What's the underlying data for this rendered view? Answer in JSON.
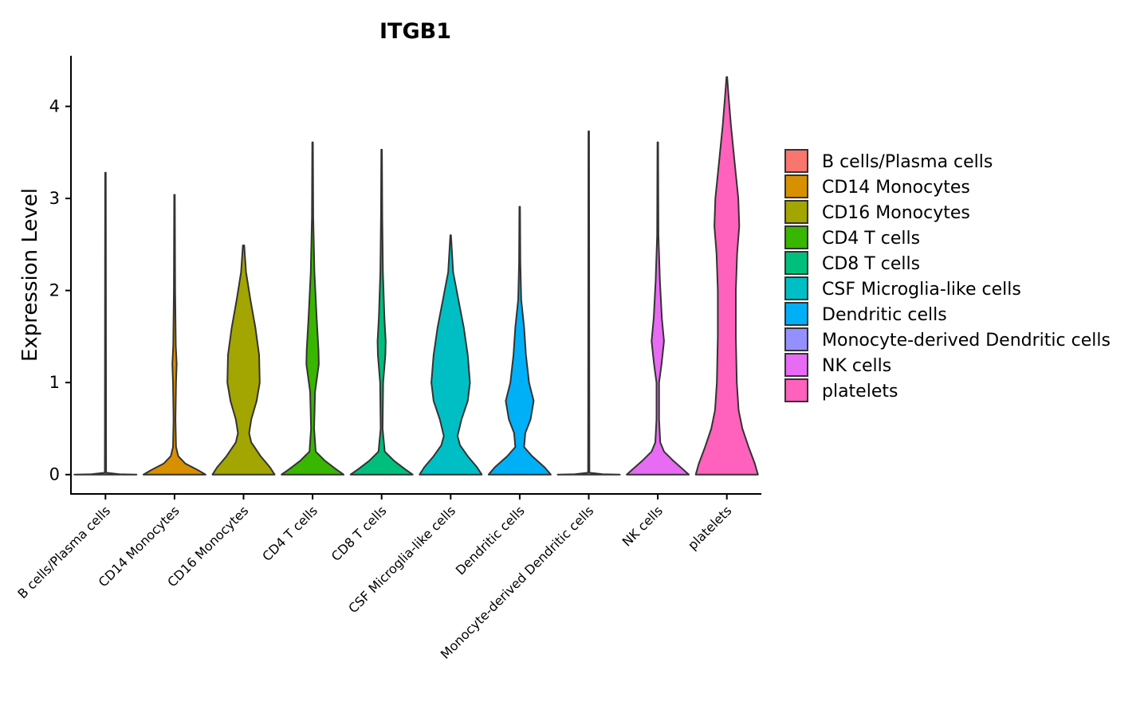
{
  "chart_data": {
    "type": "violin",
    "title": "ITGB1",
    "xlabel": "",
    "ylabel": "Expression Level",
    "ylim": [
      -0.21,
      4.55
    ],
    "yticks": [
      0,
      1,
      2,
      3,
      4
    ],
    "grid": false,
    "legend_position": "right",
    "categories": [
      "B cells/Plasma cells",
      "CD14 Monocytes",
      "CD16 Monocytes",
      "CD4 T cells",
      "CD8 T cells",
      "CSF Microglia-like cells",
      "Dendritic cells",
      "Monocyte-derived Dendritic cells",
      "NK cells",
      "platelets"
    ],
    "colors": [
      "#F8766D",
      "#D89000",
      "#A3A500",
      "#39B600",
      "#00BF7D",
      "#00BFC4",
      "#00B0F6",
      "#9590FF",
      "#E76BF3",
      "#FF62BC"
    ],
    "series": [
      {
        "name": "B cells/Plasma cells",
        "max": 3.28,
        "density": [
          [
            0,
            1.0
          ],
          [
            0.005,
            0.45
          ],
          [
            0.02,
            0.02
          ],
          [
            3.28,
            0.01
          ]
        ]
      },
      {
        "name": "CD14 Monocytes",
        "max": 3.04,
        "density": [
          [
            0,
            1.0
          ],
          [
            0.05,
            0.75
          ],
          [
            0.12,
            0.35
          ],
          [
            0.2,
            0.12
          ],
          [
            0.3,
            0.05
          ],
          [
            0.6,
            0.03
          ],
          [
            1.0,
            0.05
          ],
          [
            1.2,
            0.07
          ],
          [
            1.4,
            0.04
          ],
          [
            2.0,
            0.02
          ],
          [
            3.04,
            0.01
          ]
        ]
      },
      {
        "name": "CD16 Monocytes",
        "max": 2.49,
        "density": [
          [
            0,
            1.0
          ],
          [
            0.08,
            0.85
          ],
          [
            0.2,
            0.55
          ],
          [
            0.35,
            0.25
          ],
          [
            0.45,
            0.18
          ],
          [
            0.6,
            0.25
          ],
          [
            0.8,
            0.42
          ],
          [
            1.0,
            0.52
          ],
          [
            1.3,
            0.5
          ],
          [
            1.6,
            0.38
          ],
          [
            1.9,
            0.22
          ],
          [
            2.2,
            0.08
          ],
          [
            2.49,
            0.02
          ]
        ]
      },
      {
        "name": "CD4 T cells",
        "max": 3.61,
        "density": [
          [
            0,
            1.0
          ],
          [
            0.06,
            0.75
          ],
          [
            0.15,
            0.4
          ],
          [
            0.25,
            0.1
          ],
          [
            0.5,
            0.05
          ],
          [
            0.9,
            0.08
          ],
          [
            1.2,
            0.2
          ],
          [
            1.35,
            0.19
          ],
          [
            1.7,
            0.13
          ],
          [
            2.2,
            0.06
          ],
          [
            2.8,
            0.02
          ],
          [
            3.61,
            0.01
          ]
        ]
      },
      {
        "name": "CD8 T cells",
        "max": 3.53,
        "density": [
          [
            0,
            1.0
          ],
          [
            0.06,
            0.75
          ],
          [
            0.15,
            0.4
          ],
          [
            0.25,
            0.1
          ],
          [
            0.5,
            0.03
          ],
          [
            1.0,
            0.05
          ],
          [
            1.3,
            0.12
          ],
          [
            1.45,
            0.13
          ],
          [
            1.7,
            0.09
          ],
          [
            2.2,
            0.04
          ],
          [
            2.8,
            0.02
          ],
          [
            3.53,
            0.01
          ]
        ]
      },
      {
        "name": "CSF Microglia-like cells",
        "max": 2.6,
        "density": [
          [
            0,
            1.0
          ],
          [
            0.08,
            0.85
          ],
          [
            0.2,
            0.55
          ],
          [
            0.32,
            0.3
          ],
          [
            0.42,
            0.22
          ],
          [
            0.6,
            0.35
          ],
          [
            0.8,
            0.55
          ],
          [
            1.0,
            0.62
          ],
          [
            1.3,
            0.55
          ],
          [
            1.6,
            0.42
          ],
          [
            1.9,
            0.25
          ],
          [
            2.2,
            0.08
          ],
          [
            2.6,
            0.01
          ]
        ]
      },
      {
        "name": "Dendritic cells",
        "max": 2.91,
        "density": [
          [
            0,
            1.0
          ],
          [
            0.08,
            0.8
          ],
          [
            0.2,
            0.4
          ],
          [
            0.3,
            0.14
          ],
          [
            0.45,
            0.18
          ],
          [
            0.6,
            0.35
          ],
          [
            0.8,
            0.45
          ],
          [
            1.0,
            0.3
          ],
          [
            1.3,
            0.2
          ],
          [
            1.6,
            0.14
          ],
          [
            1.9,
            0.05
          ],
          [
            2.3,
            0.02
          ],
          [
            2.91,
            0.01
          ]
        ]
      },
      {
        "name": "Monocyte-derived Dendritic cells",
        "max": 3.73,
        "density": [
          [
            0,
            1.0
          ],
          [
            0.005,
            0.45
          ],
          [
            0.02,
            0.02
          ],
          [
            3.73,
            0.01
          ]
        ]
      },
      {
        "name": "NK cells",
        "max": 3.61,
        "density": [
          [
            0,
            1.0
          ],
          [
            0.06,
            0.8
          ],
          [
            0.15,
            0.5
          ],
          [
            0.25,
            0.2
          ],
          [
            0.35,
            0.08
          ],
          [
            0.6,
            0.04
          ],
          [
            1.0,
            0.04
          ],
          [
            1.2,
            0.12
          ],
          [
            1.45,
            0.2
          ],
          [
            1.7,
            0.13
          ],
          [
            2.1,
            0.07
          ],
          [
            2.6,
            0.02
          ],
          [
            3.61,
            0.01
          ]
        ]
      },
      {
        "name": "platelets",
        "max": 4.32,
        "density": [
          [
            0,
            1.0
          ],
          [
            0.12,
            0.9
          ],
          [
            0.3,
            0.7
          ],
          [
            0.5,
            0.5
          ],
          [
            0.7,
            0.38
          ],
          [
            1.0,
            0.32
          ],
          [
            1.5,
            0.29
          ],
          [
            2.0,
            0.29
          ],
          [
            2.4,
            0.33
          ],
          [
            2.7,
            0.4
          ],
          [
            3.0,
            0.37
          ],
          [
            3.4,
            0.25
          ],
          [
            3.8,
            0.13
          ],
          [
            4.1,
            0.06
          ],
          [
            4.32,
            0.01
          ]
        ]
      }
    ]
  }
}
